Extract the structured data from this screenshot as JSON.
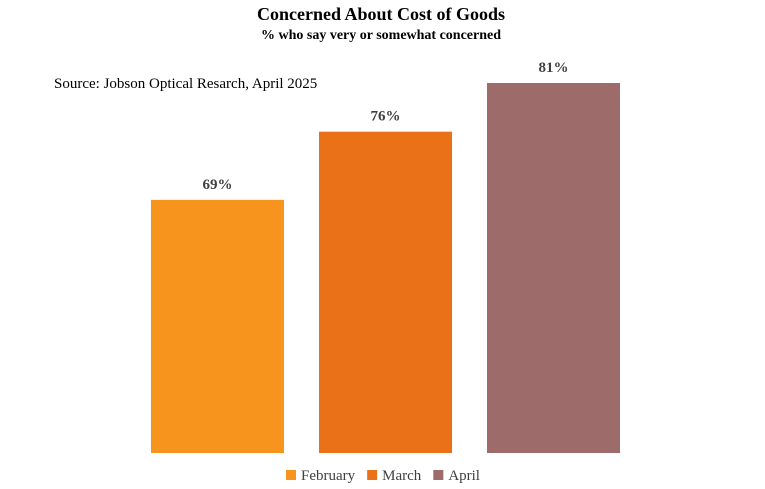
{
  "chart_data": {
    "type": "bar",
    "title": "Concerned About Cost of  Goods",
    "subtitle": "% who say very or somewhat concerned",
    "source": "Source: Jobson Optical Resarch, April 2025",
    "categories": [
      "February",
      "March",
      "April"
    ],
    "values": [
      69,
      76,
      81
    ],
    "data_labels": [
      "69%",
      "76%",
      "81%"
    ],
    "colors": [
      "#F7941D",
      "#EA7118",
      "#9E6B6B"
    ],
    "xlabel": "",
    "ylabel": "",
    "ylim": [
      43,
      81
    ],
    "grid": false,
    "axes_visible": false,
    "legend": {
      "position": "bottom",
      "entries": [
        "February",
        "March",
        "April"
      ]
    }
  }
}
